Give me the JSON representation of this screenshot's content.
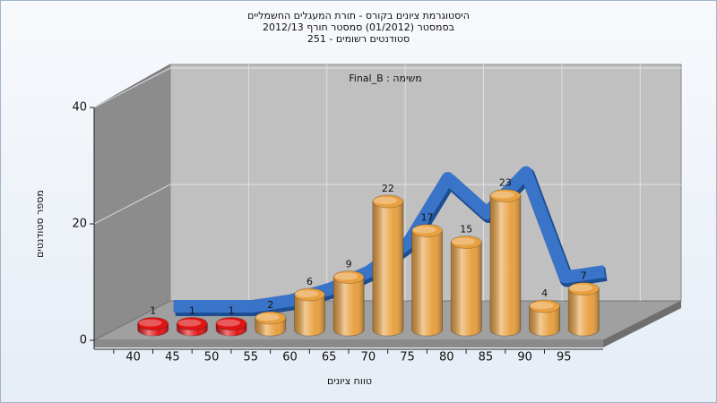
{
  "chart_data": {
    "type": "bar3d",
    "title": [
      "היסטוגרמת ציונים בקורס - תורת המעגלים החשמליים",
      "בסמסטר  (01/2012)  סמסטר חורף 2012/13",
      "סטודנטים רשומים - 251"
    ],
    "annotation": "משימה : Final_B",
    "x_label": "טווח ציונים",
    "y_label": "מספר סטודנטים",
    "categories": [
      "40",
      "45",
      "50",
      "55",
      "60",
      "65",
      "70",
      "75",
      "80",
      "85",
      "90",
      "95"
    ],
    "series": [
      {
        "type": "bar",
        "color": "#e8a040",
        "colors": [
          "#e01414",
          "#e01414",
          "#e01414",
          "#e8a040",
          "#e8a040",
          "#e8a040",
          "#e8a040",
          "#e8a040",
          "#e8a040",
          "#e8a040",
          "#e8a040",
          "#e8a040"
        ],
        "values": [
          1,
          1,
          1,
          2,
          6,
          9,
          22,
          17,
          15,
          23,
          4,
          7
        ]
      },
      {
        "type": "ribbon",
        "color": "#3a74c8",
        "values": [
          2,
          2,
          2,
          3,
          5,
          8,
          13,
          24,
          18,
          25,
          7,
          8
        ]
      }
    ],
    "ylim": [
      0,
      40
    ],
    "yticks": [
      0,
      20,
      40
    ],
    "grid": true
  }
}
